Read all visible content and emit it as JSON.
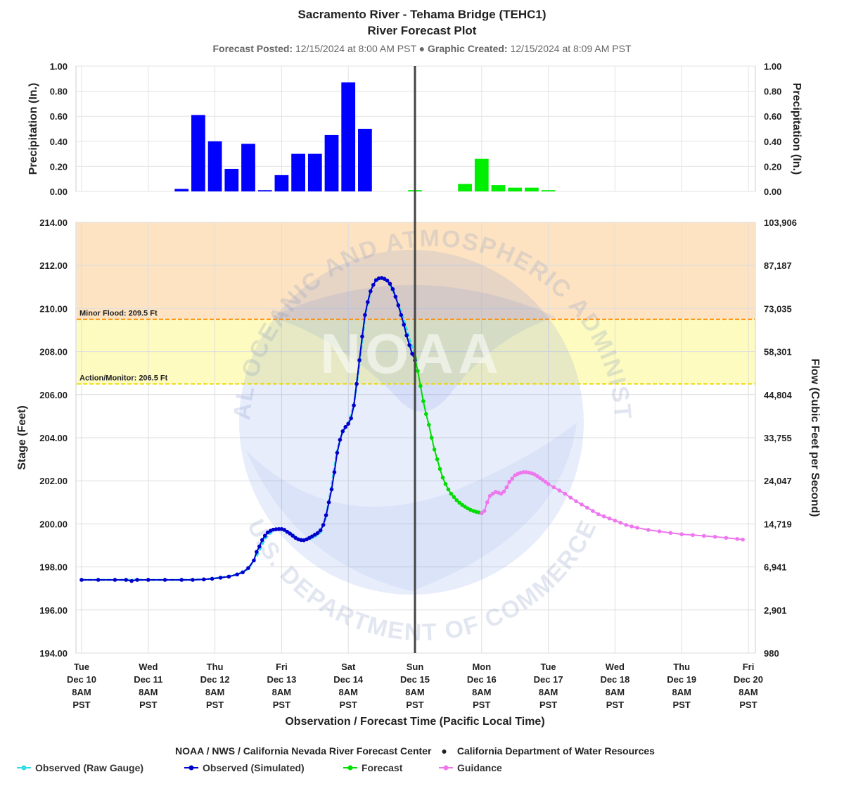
{
  "chart_data": {
    "type": "line",
    "title": "Sacramento River - Tehama Bridge (TEHC1)",
    "subtitle": "River Forecast Plot",
    "forecast_posted_label": "Forecast Posted:",
    "forecast_posted_value": "12/15/2024 at 8:00 AM PST",
    "bullet": "●",
    "graphic_created_label": "Graphic Created:",
    "graphic_created_value": "12/15/2024 at 8:09 AM PST",
    "xlabel": "Observation / Forecast Time (Pacific Local Time)",
    "x_unit": "hours after Tue Dec 10 8AM PST",
    "x_range": [
      0,
      244
    ],
    "now_x": 120,
    "x_ticks": [
      {
        "x": 0,
        "lines": [
          "Tue",
          "Dec 10",
          "8AM",
          "PST"
        ]
      },
      {
        "x": 24,
        "lines": [
          "Wed",
          "Dec 11",
          "8AM",
          "PST"
        ]
      },
      {
        "x": 48,
        "lines": [
          "Thu",
          "Dec 12",
          "8AM",
          "PST"
        ]
      },
      {
        "x": 72,
        "lines": [
          "Fri",
          "Dec 13",
          "8AM",
          "PST"
        ]
      },
      {
        "x": 96,
        "lines": [
          "Sat",
          "Dec 14",
          "8AM",
          "PST"
        ]
      },
      {
        "x": 120,
        "lines": [
          "Sun",
          "Dec 15",
          "8AM",
          "PST"
        ]
      },
      {
        "x": 144,
        "lines": [
          "Mon",
          "Dec 16",
          "8AM",
          "PST"
        ]
      },
      {
        "x": 168,
        "lines": [
          "Tue",
          "Dec 17",
          "8AM",
          "PST"
        ]
      },
      {
        "x": 192,
        "lines": [
          "Wed",
          "Dec 18",
          "8AM",
          "PST"
        ]
      },
      {
        "x": 216,
        "lines": [
          "Thu",
          "Dec 19",
          "8AM",
          "PST"
        ]
      },
      {
        "x": 240,
        "lines": [
          "Fri",
          "Dec 20",
          "8AM",
          "PST"
        ]
      }
    ],
    "precip": {
      "ylabel_left": "Precipitation (In.)",
      "ylabel_right": "Precipitation (In.)",
      "ylim": [
        0,
        1
      ],
      "y_ticks": [
        "0.00",
        "0.20",
        "0.40",
        "0.60",
        "0.80",
        "1.00"
      ],
      "bar_width_hours": 5,
      "observed_color": "#0000ff",
      "forecast_color": "#00ee00",
      "observed": [
        {
          "x": 36,
          "value": 0.02
        },
        {
          "x": 42,
          "value": 0.61
        },
        {
          "x": 48,
          "value": 0.4
        },
        {
          "x": 54,
          "value": 0.18
        },
        {
          "x": 60,
          "value": 0.38
        },
        {
          "x": 66,
          "value": 0.01
        },
        {
          "x": 72,
          "value": 0.13
        },
        {
          "x": 78,
          "value": 0.3
        },
        {
          "x": 84,
          "value": 0.3
        },
        {
          "x": 90,
          "value": 0.45
        },
        {
          "x": 96,
          "value": 0.87
        },
        {
          "x": 102,
          "value": 0.5
        }
      ],
      "forecast": [
        {
          "x": 120,
          "value": 0.01
        },
        {
          "x": 138,
          "value": 0.06
        },
        {
          "x": 144,
          "value": 0.26
        },
        {
          "x": 150,
          "value": 0.05
        },
        {
          "x": 156,
          "value": 0.03
        },
        {
          "x": 162,
          "value": 0.03
        },
        {
          "x": 168,
          "value": 0.01
        }
      ]
    },
    "stage": {
      "ylabel_left": "Stage (Feet)",
      "ylabel_right": "Flow (Cubic Feet per Second)",
      "ylim": [
        194,
        214
      ],
      "y_ticks": [
        {
          "v": 194,
          "left": "194.00",
          "right": "980"
        },
        {
          "v": 196,
          "left": "196.00",
          "right": "2,901"
        },
        {
          "v": 198,
          "left": "198.00",
          "right": "6,941"
        },
        {
          "v": 200,
          "left": "200.00",
          "right": "14,719"
        },
        {
          "v": 202,
          "left": "202.00",
          "right": "24,047"
        },
        {
          "v": 204,
          "left": "204.00",
          "right": "33,755"
        },
        {
          "v": 206,
          "left": "206.00",
          "right": "44,804"
        },
        {
          "v": 208,
          "left": "208.00",
          "right": "58,301"
        },
        {
          "v": 210,
          "left": "210.00",
          "right": "73,035"
        },
        {
          "v": 212,
          "left": "212.00",
          "right": "87,187"
        },
        {
          "v": 214,
          "left": "214.00",
          "right": "103,906"
        }
      ],
      "zones": [
        {
          "from": 206.5,
          "to": 209.5,
          "color": "#fdfbc0"
        },
        {
          "from": 209.5,
          "to": 214,
          "color": "#fde3c2"
        }
      ],
      "thresholds": [
        {
          "value": 209.5,
          "label": "Minor Flood: 209.5 Ft",
          "color": "#ff8c00"
        },
        {
          "value": 206.5,
          "label": "Action/Monitor: 206.5 Ft",
          "color": "#e8d800"
        }
      ],
      "series": [
        {
          "name": "Observed (Raw Gauge)",
          "color": "#33dde8",
          "dashed": true,
          "points": [
            [
              0,
              197.4
            ],
            [
              12,
              197.4
            ],
            [
              24,
              197.4
            ],
            [
              36,
              197.4
            ],
            [
              44,
              197.42
            ],
            [
              50,
              197.5
            ],
            [
              56,
              197.65
            ],
            [
              60,
              197.9
            ],
            [
              63,
              198.5
            ],
            [
              66,
              199.3
            ],
            [
              69,
              199.7
            ],
            [
              72,
              199.75
            ],
            [
              75,
              199.6
            ],
            [
              78,
              199.3
            ],
            [
              81,
              199.25
            ],
            [
              84,
              199.4
            ],
            [
              86,
              199.6
            ],
            [
              88,
              200.3
            ],
            [
              90,
              201.8
            ],
            [
              92,
              203.4
            ],
            [
              94,
              204.3
            ],
            [
              96,
              204.6
            ],
            [
              98,
              205.5
            ],
            [
              100,
              207.4
            ],
            [
              102,
              209.6
            ],
            [
              104,
              210.8
            ],
            [
              106,
              211.3
            ],
            [
              108,
              211.4
            ],
            [
              110,
              211.3
            ],
            [
              112,
              210.9
            ],
            [
              114,
              210.2
            ],
            [
              116,
              209.5
            ],
            [
              118,
              208.6
            ],
            [
              120,
              207.8
            ]
          ]
        },
        {
          "name": "Observed (Simulated)",
          "color": "#0000cc",
          "dashed": false,
          "points": [
            [
              0,
              197.4
            ],
            [
              6,
              197.4
            ],
            [
              12,
              197.4
            ],
            [
              16,
              197.4
            ],
            [
              18,
              197.35
            ],
            [
              20,
              197.4
            ],
            [
              24,
              197.4
            ],
            [
              30,
              197.4
            ],
            [
              36,
              197.4
            ],
            [
              40,
              197.4
            ],
            [
              44,
              197.42
            ],
            [
              47,
              197.45
            ],
            [
              50,
              197.5
            ],
            [
              53,
              197.55
            ],
            [
              56,
              197.65
            ],
            [
              58,
              197.75
            ],
            [
              60,
              197.95
            ],
            [
              62,
              198.3
            ],
            [
              63,
              198.7
            ],
            [
              64,
              198.95
            ],
            [
              65,
              199.25
            ],
            [
              66,
              199.45
            ],
            [
              67,
              199.6
            ],
            [
              68,
              199.68
            ],
            [
              69,
              199.73
            ],
            [
              70,
              199.75
            ],
            [
              71,
              199.76
            ],
            [
              72,
              199.76
            ],
            [
              73,
              199.72
            ],
            [
              74,
              199.63
            ],
            [
              75,
              199.55
            ],
            [
              76,
              199.45
            ],
            [
              77,
              199.35
            ],
            [
              78,
              199.28
            ],
            [
              79,
              199.25
            ],
            [
              80,
              199.24
            ],
            [
              81,
              199.28
            ],
            [
              82,
              199.35
            ],
            [
              83,
              199.42
            ],
            [
              84,
              199.5
            ],
            [
              85,
              199.58
            ],
            [
              86,
              199.7
            ],
            [
              87,
              199.95
            ],
            [
              88,
              200.4
            ],
            [
              89,
              201.0
            ],
            [
              90,
              201.6
            ],
            [
              91,
              202.4
            ],
            [
              92,
              203.3
            ],
            [
              93,
              203.9
            ],
            [
              94,
              204.3
            ],
            [
              95,
              204.5
            ],
            [
              96,
              204.65
            ],
            [
              97,
              204.9
            ],
            [
              98,
              205.5
            ],
            [
              99,
              206.5
            ],
            [
              100,
              207.6
            ],
            [
              101,
              208.7
            ],
            [
              102,
              209.7
            ],
            [
              103,
              210.3
            ],
            [
              104,
              210.8
            ],
            [
              105,
              211.1
            ],
            [
              106,
              211.32
            ],
            [
              107,
              211.4
            ],
            [
              108,
              211.42
            ],
            [
              109,
              211.38
            ],
            [
              110,
              211.3
            ],
            [
              111,
              211.15
            ],
            [
              112,
              210.9
            ],
            [
              113,
              210.55
            ],
            [
              114,
              210.15
            ],
            [
              115,
              209.7
            ],
            [
              116,
              209.25
            ],
            [
              117,
              208.75
            ],
            [
              118,
              208.3
            ],
            [
              119,
              207.9
            ],
            [
              120,
              207.6
            ]
          ]
        },
        {
          "name": "Forecast",
          "color": "#00dd00",
          "dashed": false,
          "points": [
            [
              120,
              207.7
            ],
            [
              121,
              207.1
            ],
            [
              122,
              206.4
            ],
            [
              123,
              205.7
            ],
            [
              124,
              205.1
            ],
            [
              125,
              204.6
            ],
            [
              126,
              204.0
            ],
            [
              127,
              203.45
            ],
            [
              128,
              203.0
            ],
            [
              129,
              202.55
            ],
            [
              130,
              202.15
            ],
            [
              131,
              201.85
            ],
            [
              132,
              201.6
            ],
            [
              133,
              201.4
            ],
            [
              134,
              201.25
            ],
            [
              135,
              201.1
            ],
            [
              136,
              200.98
            ],
            [
              137,
              200.88
            ],
            [
              138,
              200.8
            ],
            [
              139,
              200.72
            ],
            [
              140,
              200.65
            ],
            [
              141,
              200.6
            ],
            [
              142,
              200.56
            ],
            [
              143,
              200.53
            ],
            [
              144,
              200.5
            ]
          ]
        },
        {
          "name": "Guidance",
          "color": "#ee77ee",
          "dashed": false,
          "points": [
            [
              144,
              200.5
            ],
            [
              145,
              200.6
            ],
            [
              146,
              201.0
            ],
            [
              147,
              201.3
            ],
            [
              148,
              201.4
            ],
            [
              149,
              201.48
            ],
            [
              150,
              201.45
            ],
            [
              151,
              201.4
            ],
            [
              152,
              201.5
            ],
            [
              153,
              201.7
            ],
            [
              154,
              201.95
            ],
            [
              155,
              202.1
            ],
            [
              156,
              202.25
            ],
            [
              157,
              202.32
            ],
            [
              158,
              202.37
            ],
            [
              159,
              202.4
            ],
            [
              160,
              202.4
            ],
            [
              161,
              202.38
            ],
            [
              162,
              202.35
            ],
            [
              163,
              202.3
            ],
            [
              164,
              202.22
            ],
            [
              165,
              202.13
            ],
            [
              166,
              202.04
            ],
            [
              167,
              201.95
            ],
            [
              168,
              201.85
            ],
            [
              170,
              201.7
            ],
            [
              172,
              201.55
            ],
            [
              174,
              201.4
            ],
            [
              176,
              201.22
            ],
            [
              178,
              201.05
            ],
            [
              180,
              200.9
            ],
            [
              182,
              200.75
            ],
            [
              184,
              200.6
            ],
            [
              186,
              200.45
            ],
            [
              188,
              200.35
            ],
            [
              190,
              200.25
            ],
            [
              192,
              200.15
            ],
            [
              194,
              200.05
            ],
            [
              196,
              199.95
            ],
            [
              198,
              199.88
            ],
            [
              200,
              199.82
            ],
            [
              204,
              199.72
            ],
            [
              208,
              199.65
            ],
            [
              212,
              199.58
            ],
            [
              216,
              199.52
            ],
            [
              220,
              199.48
            ],
            [
              224,
              199.44
            ],
            [
              228,
              199.4
            ],
            [
              232,
              199.35
            ],
            [
              236,
              199.3
            ],
            [
              238,
              199.27
            ]
          ]
        }
      ]
    },
    "credit_left": "NOAA / NWS / California Nevada River Forecast Center",
    "credit_bullet": "●",
    "credit_right": "California Department of Water Resources",
    "legend": [
      {
        "label": "Observed (Raw Gauge)",
        "color": "#33dde8"
      },
      {
        "label": "Observed (Simulated)",
        "color": "#0000cc"
      },
      {
        "label": "Forecast",
        "color": "#00dd00"
      },
      {
        "label": "Guidance",
        "color": "#ee77ee"
      }
    ],
    "watermark": {
      "top_text": "NATIONAL OCEANIC AND ATMOSPHERIC ADMINISTRATION",
      "bottom_text": "U.S. DEPARTMENT OF COMMERCE",
      "center_text": "NOAA"
    }
  }
}
